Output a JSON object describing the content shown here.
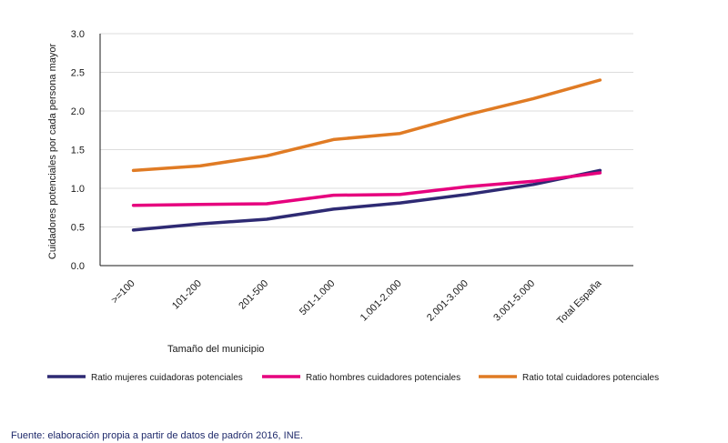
{
  "chart_data": {
    "type": "line",
    "categories": [
      ">=100",
      "101-200",
      "201-500",
      "501-1.000",
      "1.001-2.000",
      "2.001-3.000",
      "3.001-5.000",
      "Total España"
    ],
    "series": [
      {
        "name": "Ratio mujeres cuidadoras potenciales",
        "color": "#2e2a73",
        "values": [
          0.46,
          0.54,
          0.6,
          0.73,
          0.81,
          0.92,
          1.05,
          1.23
        ]
      },
      {
        "name": "Ratio hombres cuidadores potenciales",
        "color": "#e6007e",
        "values": [
          0.78,
          0.79,
          0.8,
          0.91,
          0.92,
          1.02,
          1.09,
          1.2
        ]
      },
      {
        "name": "Ratio total cuidadores potenciales",
        "color": "#e07b24",
        "values": [
          1.23,
          1.29,
          1.42,
          1.63,
          1.71,
          1.95,
          2.16,
          2.4
        ]
      }
    ],
    "xlabel": "Tamaño del municipio",
    "ylabel": "Cuidadores potenciales por cada persona mayor",
    "ylim": [
      0,
      3.0
    ],
    "yticks": [
      "0.0",
      "0.5",
      "1.0",
      "1.5",
      "2.0",
      "2.5",
      "3.0"
    ],
    "grid": "horizontal",
    "legend": "bottom"
  },
  "footer": {
    "source_label": "Fuente:",
    "source_text": " elaboración propia a partir de datos de padrón 2016, INE."
  }
}
